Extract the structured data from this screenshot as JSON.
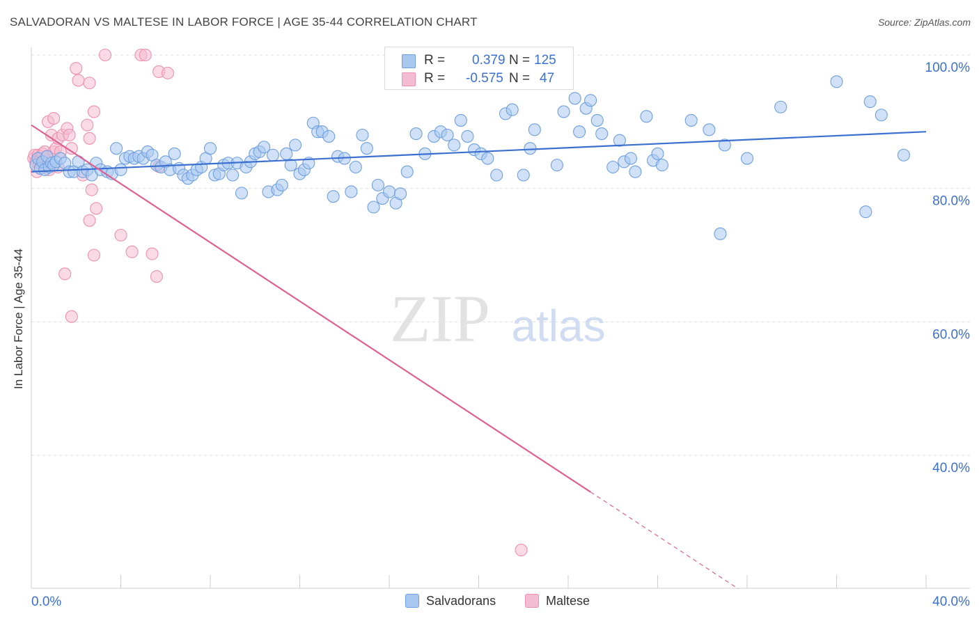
{
  "title": "SALVADORAN VS MALTESE IN LABOR FORCE | AGE 35-44 CORRELATION CHART",
  "source": "Source: ZipAtlas.com",
  "colors": {
    "blue": "#3b70d0",
    "blue_fill": "#a9c8f0",
    "blue_stroke": "#6e9fe0",
    "pink": "#e06090",
    "pink_fill": "#f4bcd0",
    "pink_stroke": "#ee90b0",
    "grid": "#dddddd",
    "axis_text": "#3b70d0"
  },
  "watermark": {
    "part1": "ZIP",
    "part2": "atlas"
  },
  "legend": {
    "rows": [
      {
        "r_label": "R =",
        "r_value": "0.379",
        "n_label": "N =",
        "n_value": "125",
        "series": "blue"
      },
      {
        "r_label": "R =",
        "r_value": "-0.575",
        "n_label": "N =",
        "n_value": "47",
        "series": "pink"
      }
    ]
  },
  "bottom_legend": [
    {
      "label": "Salvadorans",
      "series": "blue"
    },
    {
      "label": "Maltese",
      "series": "pink"
    }
  ],
  "chart_data": {
    "type": "scatter",
    "title": "SALVADORAN VS MALTESE IN LABOR FORCE | AGE 35-44 CORRELATION CHART",
    "xlabel": "",
    "ylabel": "In Labor Force | Age 35-44",
    "xlim": [
      0,
      40
    ],
    "ylim": [
      18,
      102
    ],
    "x_tick_labels": [
      {
        "value": 0,
        "label": "0.0%"
      },
      {
        "value": 40,
        "label": "40.0%"
      }
    ],
    "y_tick_labels": [
      {
        "value": 100,
        "label": "100.0%"
      },
      {
        "value": 80,
        "label": "80.0%"
      },
      {
        "value": 60,
        "label": "60.0%"
      },
      {
        "value": 40,
        "label": "40.0%"
      }
    ],
    "series": [
      {
        "name": "Salvadorans",
        "color": "blue",
        "trend": {
          "x": [
            0,
            40
          ],
          "y": [
            82.5,
            88.5
          ],
          "dashed_from": null
        },
        "points": [
          [
            0.2,
            83.5
          ],
          [
            0.3,
            84.5
          ],
          [
            0.4,
            83
          ],
          [
            0.5,
            84
          ],
          [
            0.6,
            82.8
          ],
          [
            0.7,
            84.8
          ],
          [
            0.8,
            83.2
          ],
          [
            0.9,
            83.8
          ],
          [
            1.0,
            83.5
          ],
          [
            1.1,
            84
          ],
          [
            1.3,
            84.5
          ],
          [
            1.5,
            83.8
          ],
          [
            1.7,
            82.5
          ],
          [
            1.9,
            82.5
          ],
          [
            2.1,
            84
          ],
          [
            2.3,
            82.5
          ],
          [
            2.5,
            82.8
          ],
          [
            2.7,
            82
          ],
          [
            2.9,
            83.8
          ],
          [
            3.1,
            82.8
          ],
          [
            3.4,
            82.5
          ],
          [
            3.6,
            82.2
          ],
          [
            3.8,
            86
          ],
          [
            4.0,
            82.8
          ],
          [
            4.2,
            84.5
          ],
          [
            4.4,
            84.8
          ],
          [
            4.6,
            84.5
          ],
          [
            4.8,
            84.8
          ],
          [
            5.0,
            84.5
          ],
          [
            5.2,
            85.5
          ],
          [
            5.4,
            85
          ],
          [
            5.6,
            83.5
          ],
          [
            5.8,
            83.2
          ],
          [
            6.0,
            84
          ],
          [
            6.2,
            82.8
          ],
          [
            6.4,
            85.2
          ],
          [
            6.6,
            83
          ],
          [
            6.8,
            82
          ],
          [
            7.0,
            81.5
          ],
          [
            7.2,
            82
          ],
          [
            7.4,
            82.8
          ],
          [
            7.6,
            83.2
          ],
          [
            7.8,
            84.5
          ],
          [
            8.0,
            86
          ],
          [
            8.2,
            82
          ],
          [
            8.4,
            82.2
          ],
          [
            8.6,
            83.5
          ],
          [
            8.8,
            83.8
          ],
          [
            9.0,
            82
          ],
          [
            9.2,
            83.8
          ],
          [
            9.4,
            79.3
          ],
          [
            9.6,
            83.2
          ],
          [
            9.8,
            84
          ],
          [
            10.0,
            85.2
          ],
          [
            10.2,
            85.5
          ],
          [
            10.4,
            86.2
          ],
          [
            10.6,
            79.5
          ],
          [
            10.8,
            85
          ],
          [
            11.0,
            79.8
          ],
          [
            11.2,
            80.5
          ],
          [
            11.4,
            85.2
          ],
          [
            11.6,
            83.5
          ],
          [
            11.8,
            86.5
          ],
          [
            12.0,
            82.2
          ],
          [
            12.2,
            82.8
          ],
          [
            12.4,
            83.8
          ],
          [
            12.6,
            89.8
          ],
          [
            12.8,
            88.5
          ],
          [
            13.0,
            88.5
          ],
          [
            13.3,
            87.8
          ],
          [
            13.5,
            78.8
          ],
          [
            13.7,
            84.8
          ],
          [
            14.0,
            84.5
          ],
          [
            14.3,
            79.5
          ],
          [
            14.5,
            83.2
          ],
          [
            14.8,
            88
          ],
          [
            15.0,
            86
          ],
          [
            15.3,
            77.2
          ],
          [
            15.5,
            80.5
          ],
          [
            15.7,
            78.5
          ],
          [
            16.0,
            79.5
          ],
          [
            16.3,
            77.8
          ],
          [
            16.5,
            79.2
          ],
          [
            16.8,
            82.5
          ],
          [
            17.2,
            88.2
          ],
          [
            17.6,
            85.2
          ],
          [
            18.0,
            87.8
          ],
          [
            18.3,
            88.5
          ],
          [
            18.6,
            88
          ],
          [
            18.9,
            86.5
          ],
          [
            19.2,
            90.2
          ],
          [
            19.5,
            87.8
          ],
          [
            19.8,
            85.8
          ],
          [
            20.1,
            85.2
          ],
          [
            20.4,
            84.5
          ],
          [
            20.8,
            82
          ],
          [
            21.2,
            91.2
          ],
          [
            21.5,
            91.8
          ],
          [
            22.0,
            82
          ],
          [
            22.3,
            86
          ],
          [
            22.5,
            88.8
          ],
          [
            23.5,
            83.5
          ],
          [
            23.8,
            91.5
          ],
          [
            24.3,
            93.5
          ],
          [
            24.5,
            88.5
          ],
          [
            24.8,
            92
          ],
          [
            25.0,
            93.2
          ],
          [
            25.3,
            90.2
          ],
          [
            25.5,
            88.2
          ],
          [
            26.0,
            83.2
          ],
          [
            26.3,
            87.2
          ],
          [
            26.5,
            84
          ],
          [
            26.8,
            84.5
          ],
          [
            27.0,
            82.5
          ],
          [
            27.5,
            90.8
          ],
          [
            27.8,
            84.2
          ],
          [
            28.0,
            85.2
          ],
          [
            28.2,
            83.5
          ],
          [
            29.5,
            90.2
          ],
          [
            30.3,
            88.8
          ],
          [
            30.8,
            73.2
          ],
          [
            31.0,
            86.5
          ],
          [
            32.0,
            84.5
          ],
          [
            33.5,
            92.2
          ],
          [
            36.0,
            96
          ],
          [
            37.3,
            76.5
          ],
          [
            37.5,
            93
          ],
          [
            38.0,
            91
          ],
          [
            39.0,
            85
          ]
        ]
      },
      {
        "name": "Maltese",
        "color": "pink",
        "trend": {
          "x": [
            0,
            25
          ],
          "y": [
            89.5,
            34.5
          ],
          "dashed_from": 25,
          "dashed_to": [
            31.6,
            20
          ]
        },
        "points": [
          [
            0.1,
            84.5
          ],
          [
            0.15,
            85
          ],
          [
            0.2,
            84
          ],
          [
            0.25,
            82.5
          ],
          [
            0.3,
            85
          ],
          [
            0.35,
            83.8
          ],
          [
            0.4,
            84.5
          ],
          [
            0.45,
            84.8
          ],
          [
            0.5,
            85.2
          ],
          [
            0.55,
            84
          ],
          [
            0.6,
            85.5
          ],
          [
            0.7,
            84.8
          ],
          [
            0.75,
            90
          ],
          [
            0.8,
            82.8
          ],
          [
            0.9,
            88
          ],
          [
            1.0,
            85.5
          ],
          [
            1.0,
            90.5
          ],
          [
            1.1,
            86
          ],
          [
            1.2,
            87.5
          ],
          [
            1.2,
            83.2
          ],
          [
            1.3,
            85.5
          ],
          [
            1.4,
            88
          ],
          [
            1.5,
            67.2
          ],
          [
            1.6,
            89
          ],
          [
            1.7,
            88
          ],
          [
            1.8,
            86
          ],
          [
            1.8,
            60.8
          ],
          [
            2.0,
            98
          ],
          [
            2.1,
            96.2
          ],
          [
            2.3,
            82
          ],
          [
            2.5,
            89.5
          ],
          [
            2.6,
            87.5
          ],
          [
            2.6,
            75.2
          ],
          [
            2.6,
            95.8
          ],
          [
            2.7,
            79.8
          ],
          [
            2.8,
            70
          ],
          [
            2.8,
            91.5
          ],
          [
            2.9,
            77
          ],
          [
            3.3,
            100
          ],
          [
            4.0,
            73
          ],
          [
            4.5,
            70.5
          ],
          [
            4.9,
            100
          ],
          [
            5.1,
            100
          ],
          [
            5.4,
            70.2
          ],
          [
            5.6,
            66.8
          ],
          [
            5.7,
            83.3
          ],
          [
            5.7,
            97.5
          ],
          [
            6.1,
            97.3
          ],
          [
            21.9,
            25.8
          ]
        ]
      }
    ]
  }
}
